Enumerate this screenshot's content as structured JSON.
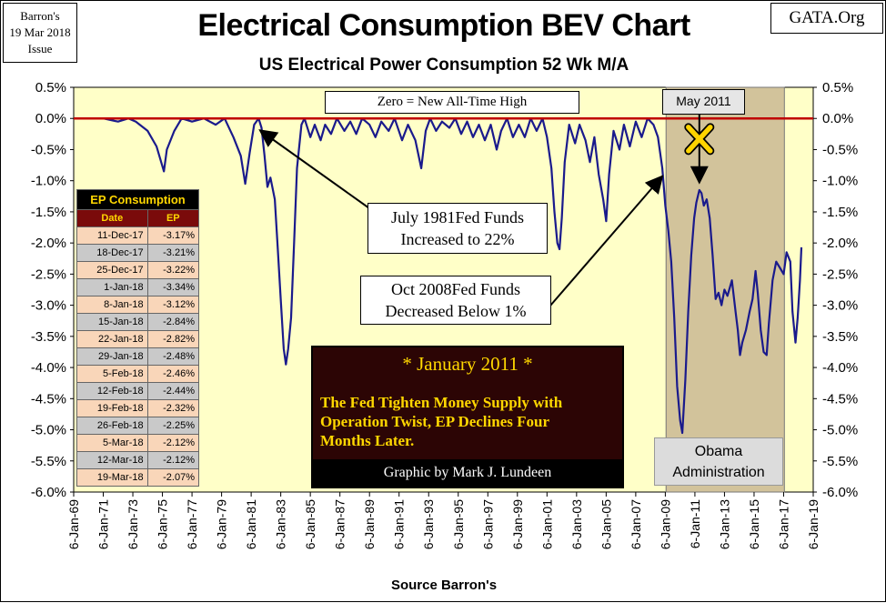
{
  "source_label": [
    "Barron's",
    "19 Mar 2018",
    "Issue"
  ],
  "site_label": "GATA.Org",
  "title": "Electrical Consumption BEV Chart",
  "subtitle": "US Electrical Power Consumption 52 Wk M/A",
  "footer": "Source Barron's",
  "annotations": {
    "zero_note": "Zero = New All-Time High",
    "may_2011": "May 2011",
    "fed_1981": [
      "July 1981Fed Funds",
      "Increased to 22%"
    ],
    "fed_2008": [
      "Oct 2008Fed Funds",
      "Decreased Below 1%"
    ],
    "obama": [
      "Obama",
      "Administration"
    ],
    "january_2011": {
      "title": "* January 2011 *",
      "body": [
        "The Fed Tighten Money Supply with",
        "Operation Twist, EP Declines Four",
        "Months Later."
      ],
      "credit": "Graphic by Mark J. Lundeen"
    }
  },
  "ep_table": {
    "caption": "EP Consumption",
    "headers": [
      "Date",
      "EP"
    ],
    "rows": [
      [
        "11-Dec-17",
        "-3.17%"
      ],
      [
        "18-Dec-17",
        "-3.21%"
      ],
      [
        "25-Dec-17",
        "-3.22%"
      ],
      [
        "1-Jan-18",
        "-3.34%"
      ],
      [
        "8-Jan-18",
        "-3.12%"
      ],
      [
        "15-Jan-18",
        "-2.84%"
      ],
      [
        "22-Jan-18",
        "-2.82%"
      ],
      [
        "29-Jan-18",
        "-2.48%"
      ],
      [
        "5-Feb-18",
        "-2.46%"
      ],
      [
        "12-Feb-18",
        "-2.44%"
      ],
      [
        "19-Feb-18",
        "-2.32%"
      ],
      [
        "26-Feb-18",
        "-2.25%"
      ],
      [
        "5-Mar-18",
        "-2.12%"
      ],
      [
        "12-Mar-18",
        "-2.12%"
      ],
      [
        "19-Mar-18",
        "-2.07%"
      ]
    ]
  },
  "colors": {
    "plot_bg": "#ffffc8",
    "series": "#1a1a8c",
    "zero_line": "#c00000",
    "shade": "#d2c39b",
    "table_header": "#7a0b0b",
    "note_box_bg": "#2c0505",
    "note_text": "#ffd700"
  },
  "chart_data": {
    "type": "line",
    "title": "Electrical Consumption BEV Chart",
    "subtitle": "US Electrical Power Consumption 52 Wk M/A",
    "xlabel": "Source Barron's",
    "ylabel": "",
    "x_ticks": [
      "6-Jan-69",
      "6-Jan-71",
      "6-Jan-73",
      "6-Jan-75",
      "6-Jan-77",
      "6-Jan-79",
      "6-Jan-81",
      "6-Jan-83",
      "6-Jan-85",
      "6-Jan-87",
      "6-Jan-89",
      "6-Jan-91",
      "6-Jan-93",
      "6-Jan-95",
      "6-Jan-97",
      "6-Jan-99",
      "6-Jan-01",
      "6-Jan-03",
      "6-Jan-05",
      "6-Jan-07",
      "6-Jan-09",
      "6-Jan-11",
      "6-Jan-13",
      "6-Jan-15",
      "6-Jan-17",
      "6-Jan-19"
    ],
    "y_ticks": [
      "0.5%",
      "0.0%",
      "-0.5%",
      "-1.0%",
      "-1.5%",
      "-2.0%",
      "-2.5%",
      "-3.0%",
      "-3.5%",
      "-4.0%",
      "-4.5%",
      "-5.0%",
      "-5.5%",
      "-6.0%"
    ],
    "xlim": [
      1969.0,
      2019.0
    ],
    "ylim": [
      -6.0,
      0.5
    ],
    "grid": false,
    "legend": "none",
    "shaded_region": {
      "label": "Obama Administration",
      "x": [
        2009.05,
        2017.05
      ]
    },
    "series": [
      {
        "points": [
          [
            1970.0,
            0.0
          ],
          [
            1971.0,
            0.0
          ],
          [
            1972.0,
            -0.05
          ],
          [
            1972.7,
            0.0
          ],
          [
            1973.2,
            -0.05
          ],
          [
            1974.0,
            -0.2
          ],
          [
            1974.6,
            -0.45
          ],
          [
            1975.1,
            -0.85
          ],
          [
            1975.3,
            -0.5
          ],
          [
            1975.8,
            -0.2
          ],
          [
            1976.3,
            0.0
          ],
          [
            1977.0,
            -0.05
          ],
          [
            1977.8,
            0.0
          ],
          [
            1978.6,
            -0.1
          ],
          [
            1979.2,
            0.0
          ],
          [
            1979.8,
            -0.3
          ],
          [
            1980.3,
            -0.6
          ],
          [
            1980.6,
            -1.05
          ],
          [
            1980.9,
            -0.55
          ],
          [
            1981.2,
            -0.1
          ],
          [
            1981.5,
            0.0
          ],
          [
            1981.7,
            -0.15
          ],
          [
            1981.9,
            -0.6
          ],
          [
            1982.1,
            -1.1
          ],
          [
            1982.3,
            -0.95
          ],
          [
            1982.6,
            -1.3
          ],
          [
            1982.8,
            -2.1
          ],
          [
            1983.0,
            -2.9
          ],
          [
            1983.2,
            -3.7
          ],
          [
            1983.35,
            -3.95
          ],
          [
            1983.5,
            -3.7
          ],
          [
            1983.7,
            -3.2
          ],
          [
            1983.9,
            -2.0
          ],
          [
            1984.1,
            -0.8
          ],
          [
            1984.4,
            -0.1
          ],
          [
            1984.6,
            0.0
          ],
          [
            1985.0,
            -0.3
          ],
          [
            1985.3,
            -0.1
          ],
          [
            1985.7,
            -0.35
          ],
          [
            1986.0,
            -0.1
          ],
          [
            1986.4,
            -0.25
          ],
          [
            1986.8,
            0.0
          ],
          [
            1987.3,
            -0.2
          ],
          [
            1987.7,
            -0.05
          ],
          [
            1988.1,
            -0.25
          ],
          [
            1988.5,
            0.0
          ],
          [
            1989.0,
            -0.1
          ],
          [
            1989.4,
            -0.3
          ],
          [
            1989.8,
            -0.05
          ],
          [
            1990.3,
            -0.2
          ],
          [
            1990.7,
            0.0
          ],
          [
            1991.2,
            -0.35
          ],
          [
            1991.6,
            -0.1
          ],
          [
            1992.1,
            -0.35
          ],
          [
            1992.5,
            -0.8
          ],
          [
            1992.8,
            -0.2
          ],
          [
            1993.1,
            0.0
          ],
          [
            1993.5,
            -0.2
          ],
          [
            1993.9,
            -0.05
          ],
          [
            1994.4,
            -0.15
          ],
          [
            1994.8,
            0.0
          ],
          [
            1995.2,
            -0.25
          ],
          [
            1995.6,
            -0.05
          ],
          [
            1996.0,
            -0.3
          ],
          [
            1996.4,
            -0.1
          ],
          [
            1996.8,
            -0.35
          ],
          [
            1997.2,
            -0.1
          ],
          [
            1997.6,
            -0.5
          ],
          [
            1997.9,
            -0.2
          ],
          [
            1998.3,
            0.0
          ],
          [
            1998.7,
            -0.3
          ],
          [
            1999.1,
            -0.1
          ],
          [
            1999.5,
            -0.3
          ],
          [
            1999.9,
            0.0
          ],
          [
            2000.3,
            -0.2
          ],
          [
            2000.7,
            0.0
          ],
          [
            2001.0,
            -0.3
          ],
          [
            2001.3,
            -0.8
          ],
          [
            2001.5,
            -1.5
          ],
          [
            2001.7,
            -2.0
          ],
          [
            2001.85,
            -2.1
          ],
          [
            2002.0,
            -1.6
          ],
          [
            2002.2,
            -0.7
          ],
          [
            2002.5,
            -0.1
          ],
          [
            2002.9,
            -0.4
          ],
          [
            2003.2,
            -0.1
          ],
          [
            2003.6,
            -0.35
          ],
          [
            2003.9,
            -0.7
          ],
          [
            2004.2,
            -0.3
          ],
          [
            2004.5,
            -0.9
          ],
          [
            2004.8,
            -1.3
          ],
          [
            2005.0,
            -1.65
          ],
          [
            2005.2,
            -0.9
          ],
          [
            2005.5,
            -0.2
          ],
          [
            2005.9,
            -0.5
          ],
          [
            2006.2,
            -0.1
          ],
          [
            2006.6,
            -0.45
          ],
          [
            2007.0,
            -0.05
          ],
          [
            2007.4,
            -0.3
          ],
          [
            2007.8,
            0.0
          ],
          [
            2008.2,
            -0.1
          ],
          [
            2008.5,
            -0.3
          ],
          [
            2008.8,
            -0.8
          ],
          [
            2009.0,
            -1.4
          ],
          [
            2009.2,
            -1.8
          ],
          [
            2009.4,
            -2.3
          ],
          [
            2009.6,
            -3.2
          ],
          [
            2009.8,
            -4.3
          ],
          [
            2010.0,
            -4.85
          ],
          [
            2010.15,
            -5.05
          ],
          [
            2010.35,
            -4.2
          ],
          [
            2010.55,
            -3.1
          ],
          [
            2010.75,
            -2.2
          ],
          [
            2010.95,
            -1.6
          ],
          [
            2011.1,
            -1.35
          ],
          [
            2011.3,
            -1.15
          ],
          [
            2011.45,
            -1.2
          ],
          [
            2011.6,
            -1.4
          ],
          [
            2011.8,
            -1.3
          ],
          [
            2012.0,
            -1.6
          ],
          [
            2012.2,
            -2.2
          ],
          [
            2012.4,
            -2.9
          ],
          [
            2012.6,
            -2.8
          ],
          [
            2012.8,
            -3.0
          ],
          [
            2013.0,
            -2.75
          ],
          [
            2013.2,
            -2.85
          ],
          [
            2013.5,
            -2.6
          ],
          [
            2013.75,
            -3.1
          ],
          [
            2013.9,
            -3.4
          ],
          [
            2014.05,
            -3.8
          ],
          [
            2014.2,
            -3.6
          ],
          [
            2014.45,
            -3.4
          ],
          [
            2014.7,
            -3.1
          ],
          [
            2014.9,
            -2.9
          ],
          [
            2015.1,
            -2.45
          ],
          [
            2015.25,
            -2.8
          ],
          [
            2015.45,
            -3.4
          ],
          [
            2015.65,
            -3.75
          ],
          [
            2015.85,
            -3.8
          ],
          [
            2016.0,
            -3.3
          ],
          [
            2016.25,
            -2.6
          ],
          [
            2016.5,
            -2.3
          ],
          [
            2016.75,
            -2.4
          ],
          [
            2017.0,
            -2.5
          ],
          [
            2017.2,
            -2.15
          ],
          [
            2017.45,
            -2.3
          ],
          [
            2017.6,
            -3.1
          ],
          [
            2017.8,
            -3.6
          ],
          [
            2017.95,
            -3.2
          ],
          [
            2018.1,
            -2.6
          ],
          [
            2018.2,
            -2.07
          ]
        ]
      }
    ]
  }
}
